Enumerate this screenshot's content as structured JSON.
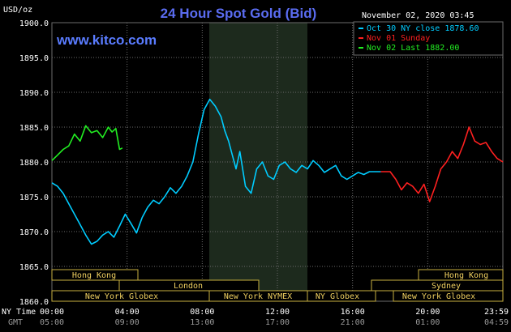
{
  "header": {
    "unit_label": "USD/oz",
    "title": "24 Hour Spot Gold (Bid)",
    "datetime": "November 02, 2020 03:45",
    "site": "www.kitco.com"
  },
  "legend": [
    {
      "text": "Oct 30 NY close 1878.60",
      "color": "#00ccff"
    },
    {
      "text": "Nov 01 Sunday",
      "color": "#ff2020"
    },
    {
      "text": "Nov 02 Last 1882.00",
      "color": "#22ee22"
    }
  ],
  "axis": {
    "y_ticks": [
      "1900.0",
      "1895.0",
      "1890.0",
      "1885.0",
      "1880.0",
      "1875.0",
      "1870.0",
      "1865.0",
      "1860.0"
    ],
    "x_ticks_ny": [
      "00:00",
      "04:00",
      "08:00",
      "12:00",
      "16:00",
      "20:00",
      "23:59"
    ],
    "x_ticks_gmt": [
      "05:00",
      "09:00",
      "13:00",
      "17:00",
      "21:00",
      "01:00",
      "04:59"
    ],
    "ny_time_label": "NY Time",
    "gmt_label": "GMT"
  },
  "markets": {
    "row1": [
      {
        "label": "Hong Kong"
      },
      {
        "label": "Hong Kong"
      }
    ],
    "row2": [
      {
        "label": "London"
      },
      {
        "label": "Sydney"
      }
    ],
    "row3": [
      {
        "label": "New York Globex"
      },
      {
        "label": "New York NYMEX"
      },
      {
        "label": "NY Globex"
      },
      {
        "label": "New York Globex"
      }
    ]
  },
  "colors": {
    "oct30": "#00ccff",
    "sunday": "#ff2020",
    "nov02": "#22ee22",
    "grid": "#6b6b6b",
    "nymex_shade": "#1d2a1d",
    "band_border": "#c8b040"
  },
  "chart_data": {
    "type": "line",
    "title": "24 Hour Spot Gold (Bid)",
    "ylabel": "USD/oz",
    "xlabel": "NY Time",
    "ylim": [
      1860.0,
      1900.0
    ],
    "xlim_hours": [
      0,
      24
    ],
    "grid": true,
    "legend_position": "top-right",
    "series": [
      {
        "name": "Oct 30 NY close 1878.60",
        "x": [
          0.0,
          0.3,
          0.6,
          0.9,
          1.2,
          1.5,
          1.8,
          2.1,
          2.4,
          2.7,
          3.0,
          3.3,
          3.6,
          3.9,
          4.2,
          4.5,
          4.8,
          5.1,
          5.4,
          5.7,
          6.0,
          6.3,
          6.6,
          6.9,
          7.2,
          7.5,
          7.8,
          8.1,
          8.4,
          8.7,
          9.0,
          9.2,
          9.4,
          9.6,
          9.8,
          10.0,
          10.3,
          10.6,
          10.9,
          11.2,
          11.5,
          11.8,
          12.1,
          12.4,
          12.7,
          13.0,
          13.3,
          13.6,
          13.9,
          14.2,
          14.5,
          14.8,
          15.1,
          15.4,
          15.7,
          16.0,
          16.3,
          16.6,
          16.9,
          17.2,
          17.5
        ],
        "y": [
          1877.0,
          1876.5,
          1875.5,
          1874.0,
          1872.5,
          1871.0,
          1869.5,
          1868.2,
          1868.6,
          1869.5,
          1870.0,
          1869.2,
          1870.8,
          1872.5,
          1871.2,
          1869.8,
          1872.0,
          1873.5,
          1874.5,
          1874.0,
          1875.0,
          1876.3,
          1875.5,
          1876.5,
          1878.0,
          1880.0,
          1884.0,
          1887.5,
          1889.0,
          1888.0,
          1886.5,
          1884.5,
          1883.0,
          1881.0,
          1879.0,
          1881.5,
          1876.5,
          1875.5,
          1879.0,
          1880.0,
          1878.0,
          1877.5,
          1879.5,
          1880.0,
          1879.0,
          1878.5,
          1879.5,
          1879.0,
          1880.2,
          1879.5,
          1878.5,
          1879.0,
          1879.5,
          1878.0,
          1877.5,
          1878.0,
          1878.5,
          1878.2,
          1878.6,
          1878.6,
          1878.6
        ]
      },
      {
        "name": "Nov 01 Sunday",
        "x": [
          17.5,
          18.0,
          18.3,
          18.6,
          18.9,
          19.2,
          19.5,
          19.8,
          20.1,
          20.4,
          20.7,
          21.0,
          21.3,
          21.6,
          21.9,
          22.2,
          22.5,
          22.8,
          23.1,
          23.4,
          23.7,
          24.0
        ],
        "y": [
          1878.6,
          1878.6,
          1877.5,
          1876.0,
          1877.0,
          1876.5,
          1875.5,
          1876.8,
          1874.3,
          1876.5,
          1879.0,
          1880.0,
          1881.5,
          1880.5,
          1882.5,
          1885.0,
          1883.0,
          1882.5,
          1882.8,
          1881.5,
          1880.5,
          1880.0
        ]
      },
      {
        "name": "Nov 02 Last 1882.00",
        "x": [
          0.0,
          0.3,
          0.6,
          0.9,
          1.2,
          1.5,
          1.8,
          2.1,
          2.4,
          2.7,
          3.0,
          3.2,
          3.4,
          3.6,
          3.75
        ],
        "y": [
          1880.2,
          1881.0,
          1881.8,
          1882.3,
          1884.0,
          1883.0,
          1885.2,
          1884.2,
          1884.5,
          1883.5,
          1885.0,
          1884.3,
          1884.8,
          1881.8,
          1882.0
        ]
      }
    ]
  }
}
